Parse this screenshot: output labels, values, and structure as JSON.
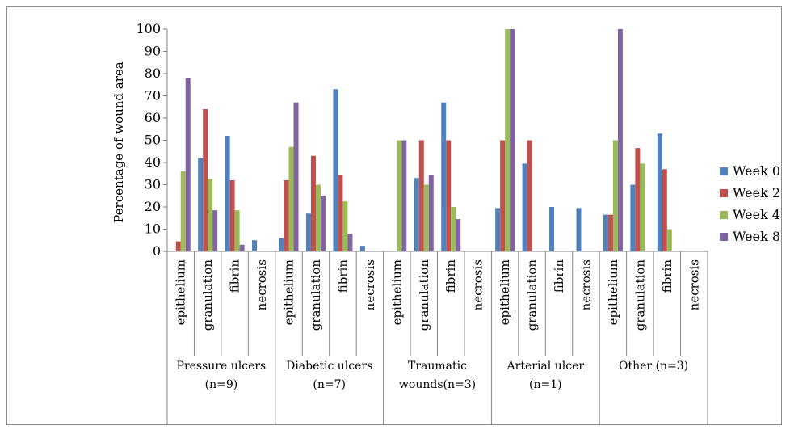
{
  "chart_data": {
    "type": "bar",
    "ylabel": "Percentage of wound area",
    "ylim": [
      0,
      100
    ],
    "yticks": [
      "0",
      "10",
      "20",
      "30",
      "40",
      "50",
      "60",
      "70",
      "80",
      "90",
      "100"
    ],
    "legend_position": "right",
    "grid": false,
    "groups": [
      {
        "label_line1": "Pressure ulcers",
        "label_line2": "(n=9)"
      },
      {
        "label_line1": "Diabetic ulcers",
        "label_line2": "(n=7)"
      },
      {
        "label_line1": "Traumatic",
        "label_line2": "wounds(n=3)"
      },
      {
        "label_line1": "Arterial ulcer",
        "label_line2": "(n=1)"
      },
      {
        "label_line1": "Other (n=3)",
        "label_line2": ""
      }
    ],
    "categories": [
      "epithelium",
      "granulation",
      "fibrin",
      "necrosis",
      "epithelium",
      "granulation",
      "fibrin",
      "necrosis",
      "epithelium",
      "granulation",
      "fibrin",
      "necrosis",
      "epithelium",
      "granulation",
      "fibrin",
      "necrosis",
      "epithelium",
      "granulation",
      "fibrin",
      "necrosis"
    ],
    "series": [
      {
        "name": "Week 0",
        "color": "#4f81bd",
        "values": [
          0,
          42,
          52,
          5,
          6,
          17,
          73,
          2.5,
          0,
          33,
          67,
          0,
          19.5,
          39.5,
          20,
          19.5,
          16.5,
          30,
          53,
          0
        ]
      },
      {
        "name": "Week 2",
        "color": "#c0504d",
        "values": [
          4.5,
          64,
          32,
          0,
          32,
          43,
          34.5,
          0,
          0,
          50,
          50,
          0,
          50,
          50,
          0,
          0,
          16.5,
          46.5,
          37,
          0
        ]
      },
      {
        "name": "Week 4",
        "color": "#9bbb59",
        "values": [
          36,
          32.5,
          18.5,
          0,
          47,
          30,
          22.5,
          0,
          50,
          30,
          20,
          0,
          100,
          0,
          0,
          0,
          50,
          39.5,
          10,
          0
        ]
      },
      {
        "name": "Week 8",
        "color": "#8064a2",
        "values": [
          78,
          18.5,
          3,
          0,
          67,
          25,
          8,
          0,
          50,
          34.5,
          14.5,
          0,
          100,
          0,
          0,
          0,
          100,
          0,
          0,
          0
        ]
      }
    ]
  }
}
